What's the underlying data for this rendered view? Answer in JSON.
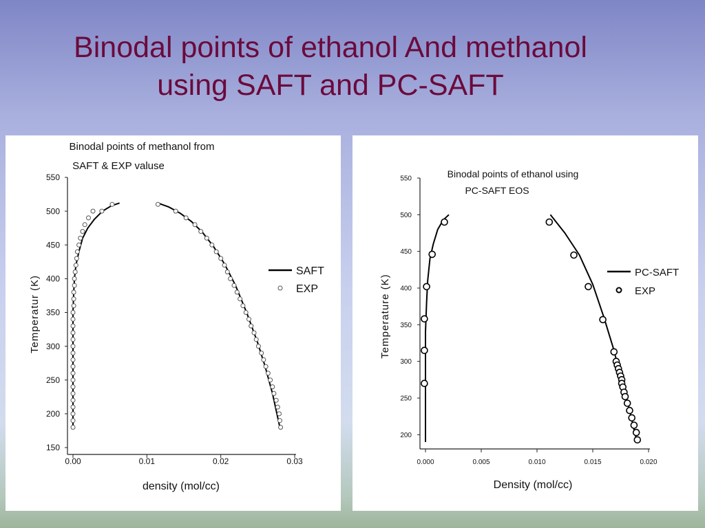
{
  "slide": {
    "title_line1": "Binodal points of ethanol And methanol",
    "title_line2": "using SAFT and PC-SAFT"
  },
  "chart_data": [
    {
      "type": "line",
      "title": "Binodal points of methanol from",
      "subtitle": "SAFT & EXP valuse",
      "xlabel": "density (mol/cc)",
      "ylabel": "Temperatur (K)",
      "xlim": [
        0.0,
        0.03
      ],
      "ylim": [
        150,
        550
      ],
      "xticks": [
        "0.00",
        "0.01",
        "0.02",
        "0.03"
      ],
      "yticks": [
        "150",
        "200",
        "250",
        "300",
        "350",
        "400",
        "450",
        "500",
        "550"
      ],
      "legend": "right",
      "series": [
        {
          "name": "SAFT",
          "style": "line",
          "color": "#000000",
          "segments": [
            [
              [
                0.0,
                180
              ],
              [
                0.0,
                250
              ],
              [
                0.0,
                300
              ],
              [
                0.0,
                350
              ],
              [
                0.0001,
                380
              ],
              [
                0.0002,
                400
              ],
              [
                0.0004,
                420
              ],
              [
                0.0008,
                440
              ],
              [
                0.0013,
                460
              ],
              [
                0.002,
                475
              ],
              [
                0.0029,
                488
              ],
              [
                0.004,
                500
              ],
              [
                0.0052,
                508
              ],
              [
                0.0063,
                512
              ]
            ],
            [
              [
                0.0115,
                512
              ],
              [
                0.013,
                506
              ],
              [
                0.0145,
                497
              ],
              [
                0.016,
                485
              ],
              [
                0.0175,
                469
              ],
              [
                0.019,
                448
              ],
              [
                0.0205,
                422
              ],
              [
                0.022,
                390
              ],
              [
                0.0235,
                350
              ],
              [
                0.025,
                305
              ],
              [
                0.026,
                270
              ],
              [
                0.027,
                230
              ],
              [
                0.0276,
                200
              ],
              [
                0.028,
                180
              ]
            ]
          ]
        },
        {
          "name": "EXP",
          "style": "open-circle",
          "color": "#555555",
          "points": [
            [
              0.0,
              180
            ],
            [
              0.0,
              190
            ],
            [
              0.0,
              200
            ],
            [
              0.0,
              210
            ],
            [
              0.0,
              220
            ],
            [
              0.0,
              230
            ],
            [
              0.0,
              240
            ],
            [
              0.0,
              250
            ],
            [
              0.0,
              260
            ],
            [
              0.0,
              270
            ],
            [
              0.0,
              280
            ],
            [
              0.0,
              290
            ],
            [
              0.0,
              300
            ],
            [
              0.0,
              310
            ],
            [
              0.0,
              320
            ],
            [
              0.0,
              330
            ],
            [
              0.0,
              340
            ],
            [
              0.0,
              350
            ],
            [
              0.0001,
              360
            ],
            [
              0.0001,
              370
            ],
            [
              0.0001,
              380
            ],
            [
              0.0002,
              390
            ],
            [
              0.0002,
              400
            ],
            [
              0.0003,
              410
            ],
            [
              0.0004,
              420
            ],
            [
              0.0005,
              430
            ],
            [
              0.0006,
              440
            ],
            [
              0.0008,
              450
            ],
            [
              0.001,
              460
            ],
            [
              0.0013,
              470
            ],
            [
              0.0016,
              480
            ],
            [
              0.0021,
              490
            ],
            [
              0.0027,
              500
            ],
            [
              0.0039,
              500
            ],
            [
              0.0053,
              510
            ],
            [
              0.0115,
              510
            ],
            [
              0.0139,
              500
            ],
            [
              0.0153,
              490
            ],
            [
              0.0165,
              480
            ],
            [
              0.0173,
              470
            ],
            [
              0.0181,
              460
            ],
            [
              0.0188,
              450
            ],
            [
              0.0194,
              440
            ],
            [
              0.02,
              430
            ],
            [
              0.0205,
              420
            ],
            [
              0.0209,
              410
            ],
            [
              0.0213,
              400
            ],
            [
              0.0218,
              390
            ],
            [
              0.0222,
              380
            ],
            [
              0.0226,
              370
            ],
            [
              0.023,
              360
            ],
            [
              0.0234,
              350
            ],
            [
              0.0238,
              340
            ],
            [
              0.0241,
              330
            ],
            [
              0.0245,
              320
            ],
            [
              0.0248,
              310
            ],
            [
              0.0251,
              300
            ],
            [
              0.0255,
              290
            ],
            [
              0.0258,
              280
            ],
            [
              0.0261,
              270
            ],
            [
              0.0264,
              260
            ],
            [
              0.0267,
              250
            ],
            [
              0.027,
              240
            ],
            [
              0.0272,
              230
            ],
            [
              0.0275,
              220
            ],
            [
              0.0277,
              210
            ],
            [
              0.0279,
              200
            ],
            [
              0.028,
              190
            ],
            [
              0.0281,
              180
            ]
          ]
        }
      ]
    },
    {
      "type": "line",
      "title": "Binodal points of ethanol using",
      "subtitle": "PC-SAFT EOS",
      "xlabel": "Density (mol/cc)",
      "ylabel": "Temperature (K)",
      "xlim": [
        0.0,
        0.02
      ],
      "ylim": [
        190,
        550
      ],
      "xticks": [
        "0.000",
        "0.005",
        "0.010",
        "0.015",
        "0.020"
      ],
      "yticks": [
        "200",
        "250",
        "300",
        "350",
        "400",
        "450",
        "500",
        "550"
      ],
      "legend": "right",
      "series": [
        {
          "name": "PC-SAFT",
          "style": "line",
          "color": "#000000",
          "segments": [
            [
              [
                0.0,
                190
              ],
              [
                0.0,
                250
              ],
              [
                0.0,
                300
              ],
              [
                0.0,
                340
              ],
              [
                0.0001,
                380
              ],
              [
                0.0002,
                410
              ],
              [
                0.0004,
                440
              ],
              [
                0.0007,
                460
              ],
              [
                0.0011,
                480
              ],
              [
                0.0016,
                493
              ],
              [
                0.0021,
                500
              ]
            ],
            [
              [
                0.0112,
                500
              ],
              [
                0.0125,
                475
              ],
              [
                0.0138,
                445
              ],
              [
                0.015,
                405
              ],
              [
                0.016,
                360
              ],
              [
                0.0168,
                320
              ],
              [
                0.0175,
                280
              ],
              [
                0.0182,
                240
              ],
              [
                0.0188,
                200
              ],
              [
                0.019,
                190
              ]
            ]
          ]
        },
        {
          "name": "EXP",
          "style": "open-circle",
          "color": "#000000",
          "points": [
            [
              -0.0001,
              270
            ],
            [
              -0.0001,
              315
            ],
            [
              -0.0001,
              358
            ],
            [
              0.0001,
              402
            ],
            [
              0.0006,
              446
            ],
            [
              0.0017,
              490
            ],
            [
              0.0111,
              490
            ],
            [
              0.0133,
              445
            ],
            [
              0.0146,
              402
            ],
            [
              0.0159,
              357
            ],
            [
              0.0169,
              313
            ],
            [
              0.0171,
              300
            ],
            [
              0.0172,
              295
            ],
            [
              0.0173,
              290
            ],
            [
              0.0174,
              285
            ],
            [
              0.0175,
              280
            ],
            [
              0.0176,
              275
            ],
            [
              0.0176,
              270
            ],
            [
              0.0177,
              265
            ],
            [
              0.0178,
              258
            ],
            [
              0.0179,
              252
            ],
            [
              0.0181,
              243
            ],
            [
              0.0183,
              233
            ],
            [
              0.0185,
              223
            ],
            [
              0.0187,
              213
            ],
            [
              0.0189,
              203
            ],
            [
              0.019,
              193
            ]
          ]
        }
      ]
    }
  ]
}
